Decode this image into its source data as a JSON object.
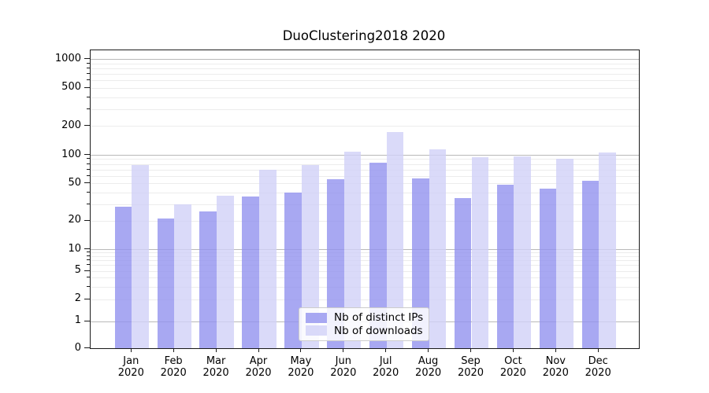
{
  "chart_data": {
    "type": "bar",
    "title": "DuoClustering2018 2020",
    "categories": [
      "Jan 2020",
      "Feb 2020",
      "Mar 2020",
      "Apr 2020",
      "May 2020",
      "Jun 2020",
      "Jul 2020",
      "Aug 2020",
      "Sep 2020",
      "Oct 2020",
      "Nov 2020",
      "Dec 2020"
    ],
    "x_tick_months": [
      "Jan",
      "Feb",
      "Mar",
      "Apr",
      "May",
      "Jun",
      "Jul",
      "Aug",
      "Sep",
      "Oct",
      "Nov",
      "Dec"
    ],
    "x_tick_year": "2020",
    "series": [
      {
        "name": "Nb of distinct IPs",
        "color": "#a8a8f2",
        "values": [
          28,
          21,
          25,
          36,
          40,
          55,
          82,
          56,
          35,
          48,
          44,
          53
        ]
      },
      {
        "name": "Nb of downloads",
        "color": "#dadaf9",
        "values": [
          78,
          30,
          37,
          70,
          78,
          108,
          173,
          114,
          95,
          96,
          91,
          106
        ]
      }
    ],
    "y_axis": {
      "scale": "symlog",
      "tick_values": [
        0,
        1,
        2,
        5,
        10,
        20,
        50,
        100,
        200,
        500,
        1000
      ],
      "tick_labels": [
        "0",
        "1",
        "2",
        "5",
        "10",
        "20",
        "50",
        "100",
        "200",
        "500",
        "1000"
      ],
      "ylim": [
        0,
        1230
      ]
    },
    "grid": {
      "enabled": true,
      "major_color": "#b9b9b9",
      "minor_color": "#ececec"
    },
    "legend": {
      "position": "lower-center",
      "entries": [
        "Nb of distinct IPs",
        "Nb of downloads"
      ]
    }
  }
}
